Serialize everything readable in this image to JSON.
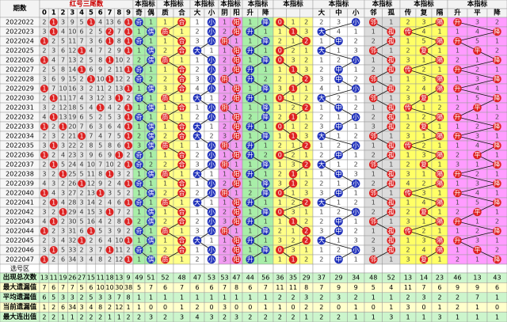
{
  "header": {
    "period_label": "期数",
    "tail_title": "红号三尾数",
    "tail_digits": [
      0,
      1,
      2,
      3,
      4,
      5,
      6,
      7,
      8,
      9
    ],
    "groups": [
      {
        "title": "本指标",
        "subs": [
          "奇",
          "偶"
        ],
        "bg": "#a8eea8",
        "ball": "#2233bb"
      },
      {
        "title": "本指标",
        "subs": [
          "质",
          "合"
        ],
        "bg": "#ffff88",
        "ball": "#dd2222"
      },
      {
        "title": "本指标",
        "subs": [
          "大",
          "小"
        ],
        "bg": "#ffffff",
        "ball": "#2233bb"
      },
      {
        "title": "本指标",
        "subs": [
          "阴",
          "阳"
        ],
        "bg": "#f29cf2",
        "ball": "#dd2222"
      },
      {
        "title": "本指标",
        "subs": [
          "升",
          "降"
        ],
        "bg": "#a8eea8",
        "ball": "#2233bb"
      },
      {
        "title": "本指标",
        "bg": "#ffff88",
        "ball": "#dd2222"
      },
      {
        "title": "本指标",
        "subs": [
          "大",
          "中",
          "小"
        ],
        "bg": "#ffffff",
        "ball": "#2233bb"
      },
      {
        "title": "本指标",
        "subs": [
          "邻",
          "孤"
        ],
        "bg": "#dcdcdc",
        "ball": "#dd2222"
      },
      {
        "title": "本指标",
        "subs": [
          "传",
          "复",
          "隔"
        ],
        "bg": "#ffff66",
        "ball": "#dd2222"
      },
      {
        "title": "本指标",
        "subs": [
          "升",
          "平",
          "降"
        ],
        "bg": "#ff9cff",
        "ball": "#dd2222"
      }
    ]
  },
  "rows": [
    {
      "period": "2022022",
      "tails": [
        2,
        1,
        3,
        9,
        5,
        1,
        4,
        13,
        6,
        1
      ],
      "tail_hits": [
        1,
        5,
        9
      ],
      "indicators": [
        "奇",
        1,
        1,
        "合",
        1,
        "小",
        1,
        "阳",
        1,
        "降",
        "0",
        1,
        2,
        2,
        3,
        "小",
        "邻",
        1,
        2,
        3,
        "隔",
        "升",
        3,
        2
      ]
    },
    {
      "period": "2022023",
      "tails": [
        3,
        1,
        4,
        10,
        6,
        2,
        5,
        2,
        7,
        1
      ],
      "tail_hits": [
        1,
        7,
        9
      ],
      "indicators": [
        1,
        "偶",
        "质",
        1,
        2,
        "小",
        2,
        "阳",
        "升",
        1,
        1,
        "1",
        3,
        "大",
        4,
        1,
        1,
        "孤",
        "传",
        4,
        1,
        1,
        4,
        "降"
      ]
    },
    {
      "period": "2022024",
      "tails": [
        1,
        2,
        5,
        11,
        7,
        3,
        6,
        1,
        8,
        1
      ],
      "tail_hits": [
        0,
        7,
        9
      ],
      "indicators": [
        "奇",
        1,
        1,
        "合",
        3,
        "小",
        "阴",
        1,
        1,
        "降",
        2,
        1,
        "2",
        1,
        "中",
        2,
        2,
        "孤",
        1,
        5,
        "隔",
        "升",
        5,
        1
      ]
    },
    {
      "period": "2022025",
      "tails": [
        2,
        3,
        6,
        12,
        1,
        4,
        7,
        2,
        9,
        1
      ],
      "tail_hits": [
        4,
        9
      ],
      "indicators": [
        1,
        "偶",
        2,
        "合",
        "大",
        1,
        1,
        "阳",
        "升",
        1,
        "0",
        2,
        1,
        "大",
        1,
        3,
        "邻",
        1,
        2,
        "复",
        1,
        1,
        "平",
        2
      ]
    },
    {
      "period": "2022026",
      "tails": [
        1,
        4,
        7,
        13,
        2,
        5,
        8,
        1,
        10,
        2
      ],
      "tail_hits": [
        0,
        7
      ],
      "indicators": [
        2,
        "偶",
        "质",
        1,
        1,
        "小",
        2,
        "阳",
        1,
        "降",
        "0",
        3,
        2,
        1,
        2,
        "小",
        1,
        "孤",
        3,
        1,
        "隔",
        2,
        1,
        "降"
      ]
    },
    {
      "period": "2022027",
      "tails": [
        2,
        5,
        8,
        14,
        1,
        6,
        9,
        2,
        11,
        1
      ],
      "tail_hits": [
        4,
        9
      ],
      "indicators": [
        "奇",
        1,
        1,
        "合",
        2,
        "小",
        3,
        "阳",
        "升",
        1,
        1,
        "1",
        3,
        2,
        "中",
        1,
        2,
        "孤",
        "传",
        2,
        1,
        "升",
        2,
        1
      ]
    },
    {
      "period": "2022028",
      "tails": [
        3,
        6,
        9,
        15,
        2,
        1,
        10,
        1,
        12,
        2
      ],
      "tail_hits": [
        5,
        7
      ],
      "indicators": [
        "奇",
        2,
        2,
        "合",
        3,
        "小",
        "阴",
        1,
        "升",
        2,
        2,
        1,
        "2",
        3,
        "中",
        2,
        "邻",
        1,
        1,
        3,
        "隔",
        1,
        3,
        "降"
      ]
    },
    {
      "period": "2022029",
      "tails": [
        1,
        7,
        10,
        16,
        3,
        2,
        11,
        2,
        13,
        1
      ],
      "tail_hits": [
        0,
        9
      ],
      "indicators": [
        1,
        "偶",
        3,
        "合",
        4,
        "小",
        1,
        "阳",
        1,
        "降",
        3,
        "1",
        1,
        4,
        1,
        "小",
        1,
        "孤",
        2,
        4,
        "隔",
        "升",
        4,
        1
      ]
    },
    {
      "period": "2022030",
      "tails": [
        2,
        1,
        11,
        17,
        4,
        3,
        12,
        3,
        1,
        2
      ],
      "tail_hits": [
        1,
        8
      ],
      "indicators": [
        "奇",
        1,
        "质",
        1,
        "大",
        1,
        2,
        "阳",
        "升",
        1,
        "0",
        1,
        2,
        "大",
        2,
        1,
        "邻",
        1,
        3,
        "复",
        1,
        1,
        5,
        "降"
      ]
    },
    {
      "period": "2022031",
      "tails": [
        3,
        2,
        12,
        18,
        5,
        4,
        1,
        4,
        2,
        1
      ],
      "tail_hits": [
        6,
        9
      ],
      "indicators": [
        1,
        "偶",
        1,
        "合",
        1,
        "小",
        "阴",
        1,
        1,
        "降",
        1,
        2,
        "2",
        1,
        "中",
        2,
        1,
        "孤",
        "传",
        1,
        2,
        2,
        "平",
        1
      ]
    },
    {
      "period": "2022032",
      "tails": [
        4,
        1,
        13,
        19,
        6,
        5,
        2,
        5,
        3,
        1
      ],
      "tail_hits": [
        1,
        9
      ],
      "indicators": [
        "奇",
        1,
        "质",
        1,
        2,
        "小",
        1,
        "阳",
        2,
        "降",
        2,
        "1",
        1,
        2,
        1,
        "小",
        2,
        "孤",
        1,
        2,
        "隔",
        "升",
        1,
        2
      ]
    },
    {
      "period": "2022033",
      "tails": [
        1,
        2,
        1,
        20,
        7,
        6,
        3,
        6,
        4,
        1
      ],
      "tail_hits": [
        0,
        2,
        9
      ],
      "indicators": [
        1,
        "偶",
        1,
        "合",
        "大",
        1,
        2,
        "阳",
        "升",
        1,
        "0",
        1,
        2,
        3,
        "中",
        1,
        3,
        "孤",
        2,
        "复",
        1,
        1,
        2,
        "降"
      ]
    },
    {
      "period": "2022034",
      "tails": [
        2,
        3,
        2,
        21,
        1,
        7,
        4,
        7,
        5,
        1
      ],
      "tail_hits": [
        4,
        9
      ],
      "indicators": [
        2,
        "偶",
        2,
        "合",
        "大",
        2,
        3,
        "阳",
        1,
        "降",
        1,
        "1",
        3,
        "大",
        1,
        2,
        "邻",
        1,
        3,
        1,
        "隔",
        "升",
        3,
        1
      ]
    },
    {
      "period": "2022035",
      "tails": [
        3,
        1,
        3,
        22,
        2,
        8,
        5,
        8,
        6,
        1
      ],
      "tail_hits": [
        1,
        9
      ],
      "indicators": [
        3,
        "偶",
        "质",
        1,
        1,
        "小",
        "阴",
        1,
        "升",
        1,
        2,
        1,
        "2",
        1,
        2,
        "小",
        1,
        "孤",
        "传",
        2,
        1,
        1,
        4,
        "降"
      ]
    },
    {
      "period": "2022036",
      "tails": [
        1,
        2,
        4,
        23,
        3,
        9,
        6,
        9,
        1,
        2
      ],
      "tail_hits": [
        0,
        8
      ],
      "indicators": [
        "奇",
        1,
        1,
        "合",
        2,
        "小",
        1,
        "阳",
        "升",
        2,
        "0",
        2,
        1,
        2,
        "中",
        1,
        2,
        "孤",
        1,
        3,
        "隔",
        2,
        "平",
        1
      ]
    },
    {
      "period": "2022037",
      "tails": [
        2,
        1,
        5,
        24,
        4,
        10,
        7,
        10,
        2,
        1
      ],
      "tail_hits": [
        1,
        9
      ],
      "indicators": [
        "奇",
        2,
        2,
        "合",
        3,
        "小",
        "阴",
        1,
        1,
        "降",
        1,
        3,
        "2",
        "大",
        1,
        2,
        "邻",
        1,
        2,
        "复",
        1,
        3,
        1,
        "降"
      ]
    },
    {
      "period": "2022038",
      "tails": [
        3,
        2,
        1,
        25,
        5,
        11,
        8,
        1,
        3,
        2
      ],
      "tail_hits": [
        2,
        7
      ],
      "indicators": [
        1,
        "偶",
        "质",
        1,
        "大",
        1,
        1,
        "阳",
        "升",
        1,
        2,
        "1",
        1,
        1,
        "中",
        3,
        1,
        "孤",
        3,
        1,
        "隔",
        "升",
        2,
        1
      ]
    },
    {
      "period": "2022039",
      "tails": [
        4,
        3,
        2,
        26,
        1,
        12,
        9,
        2,
        4,
        1
      ],
      "tail_hits": [
        4,
        9
      ],
      "indicators": [
        "奇",
        1,
        1,
        "合",
        1,
        "小",
        2,
        "阳",
        1,
        "降",
        3,
        "1",
        2,
        2,
        1,
        "小",
        2,
        "孤",
        4,
        2,
        "隔",
        1,
        3,
        "降"
      ]
    },
    {
      "period": "2022040",
      "tails": [
        1,
        4,
        3,
        27,
        2,
        13,
        1,
        3,
        5,
        2
      ],
      "tail_hits": [
        0,
        6
      ],
      "indicators": [
        1,
        "偶",
        2,
        "合",
        2,
        "小",
        "阴",
        1,
        2,
        "降",
        "0",
        1,
        3,
        3,
        "中",
        1,
        "邻",
        1,
        "传",
        3,
        1,
        "升",
        4,
        1
      ]
    },
    {
      "period": "2022041",
      "tails": [
        2,
        1,
        4,
        28,
        3,
        14,
        2,
        4,
        6,
        1
      ],
      "tail_hits": [
        1,
        9
      ],
      "indicators": [
        "奇",
        1,
        "质",
        1,
        "大",
        1,
        1,
        "阳",
        "升",
        1,
        1,
        2,
        "2",
        "大",
        1,
        2,
        1,
        "孤",
        1,
        4,
        "隔",
        1,
        5,
        "降"
      ]
    },
    {
      "period": "2022042",
      "tails": [
        3,
        2,
        1,
        29,
        4,
        15,
        3,
        1,
        7,
        2
      ],
      "tail_hits": [
        2,
        7
      ],
      "indicators": [
        1,
        "偶",
        1,
        "合",
        1,
        "小",
        2,
        "阳",
        1,
        "降",
        "0",
        3,
        1,
        1,
        2,
        "小",
        2,
        "孤",
        2,
        "复",
        1,
        2,
        "平",
        1
      ]
    },
    {
      "period": "2022043",
      "tails": [
        4,
        1,
        2,
        30,
        5,
        16,
        4,
        2,
        8,
        1
      ],
      "tail_hits": [
        1,
        9
      ],
      "indicators": [
        2,
        "偶",
        2,
        "合",
        2,
        "小",
        3,
        "阳",
        "升",
        1,
        1,
        "1",
        2,
        2,
        "中",
        1,
        "邻",
        1,
        3,
        1,
        "隔",
        "升",
        1,
        2
      ]
    },
    {
      "period": "2022044",
      "tails": [
        1,
        2,
        3,
        31,
        6,
        1,
        5,
        3,
        9,
        2
      ],
      "tail_hits": [
        0,
        5
      ],
      "indicators": [
        "奇",
        1,
        "质",
        1,
        3,
        "小",
        "阴",
        1,
        1,
        "降",
        2,
        1,
        "2",
        3,
        "中",
        2,
        1,
        "孤",
        "传",
        2,
        1,
        1,
        2,
        "降"
      ]
    },
    {
      "period": "2022045",
      "tails": [
        2,
        3,
        4,
        32,
        1,
        2,
        6,
        4,
        10,
        1
      ],
      "tail_hits": [
        4,
        9
      ],
      "indicators": [
        1,
        "偶",
        1,
        "合",
        "大",
        1,
        1,
        "阳",
        "升",
        1,
        3,
        2,
        "2",
        "大",
        1,
        3,
        2,
        "孤",
        1,
        3,
        "隔",
        "升",
        3,
        1
      ]
    },
    {
      "period": "2022046",
      "tails": [
        3,
        1,
        5,
        33,
        2,
        3,
        7,
        1,
        11,
        2
      ],
      "tail_hits": [
        1,
        7
      ],
      "indicators": [
        "奇",
        1,
        2,
        "合",
        1,
        "小",
        2,
        "阳",
        1,
        "降",
        "0",
        3,
        1,
        1,
        2,
        "小",
        3,
        "孤",
        2,
        4,
        "隔",
        1,
        "平",
        2
      ]
    },
    {
      "period": "2022047",
      "tails": [
        1,
        2,
        6,
        34,
        3,
        4,
        8,
        2,
        12,
        1
      ],
      "tail_hits": [
        0,
        9
      ],
      "indicators": [
        1,
        "偶",
        "质",
        1,
        2,
        "小",
        3,
        "阳",
        "升",
        1,
        1,
        "1",
        2,
        2,
        "中",
        1,
        "邻",
        1,
        3,
        "复",
        1,
        2,
        1,
        "降"
      ]
    }
  ],
  "pick_label": "选号区",
  "stats": [
    {
      "label": "出现总次数",
      "values": [
        13,
        11,
        19,
        26,
        27,
        15,
        11,
        18,
        13,
        9,
        49,
        51,
        52,
        48,
        47,
        53,
        53,
        47,
        44,
        56,
        36,
        35,
        29,
        37,
        29,
        34,
        48,
        52,
        13,
        14,
        23,
        46,
        13,
        43
      ]
    },
    {
      "label": "最大遗漏值",
      "values": [
        7,
        6,
        7,
        7,
        5,
        6,
        10,
        10,
        30,
        38,
        5,
        7,
        6,
        7,
        6,
        6,
        7,
        8,
        6,
        7,
        11,
        11,
        8,
        7,
        9,
        9,
        5,
        4,
        11,
        7,
        6,
        9,
        9,
        6
      ]
    },
    {
      "label": "平均遗漏值",
      "values": [
        6,
        5,
        3,
        3,
        2,
        5,
        3,
        3,
        7,
        8,
        1,
        1,
        1,
        1,
        1,
        1,
        1,
        1,
        1,
        1,
        2,
        2,
        3,
        2,
        3,
        2,
        1,
        1,
        2,
        3,
        2,
        2,
        7,
        1
      ]
    },
    {
      "label": "当前遗漏值",
      "values": [
        1,
        2,
        6,
        34,
        3,
        4,
        8,
        2,
        12,
        1,
        1,
        0,
        0,
        1,
        2,
        0,
        3,
        0,
        0,
        1,
        1,
        0,
        2,
        2,
        0,
        1,
        0,
        1,
        3,
        0,
        1,
        2,
        1,
        0
      ]
    },
    {
      "label": "最大连出值",
      "values": [
        2,
        2,
        1,
        1,
        2,
        2,
        2,
        1,
        1,
        2,
        2,
        3,
        2,
        3,
        4,
        3,
        2,
        3,
        2,
        2,
        2,
        2,
        1,
        2,
        2,
        1,
        1,
        3,
        1,
        1,
        3,
        1,
        1,
        1
      ]
    }
  ]
}
